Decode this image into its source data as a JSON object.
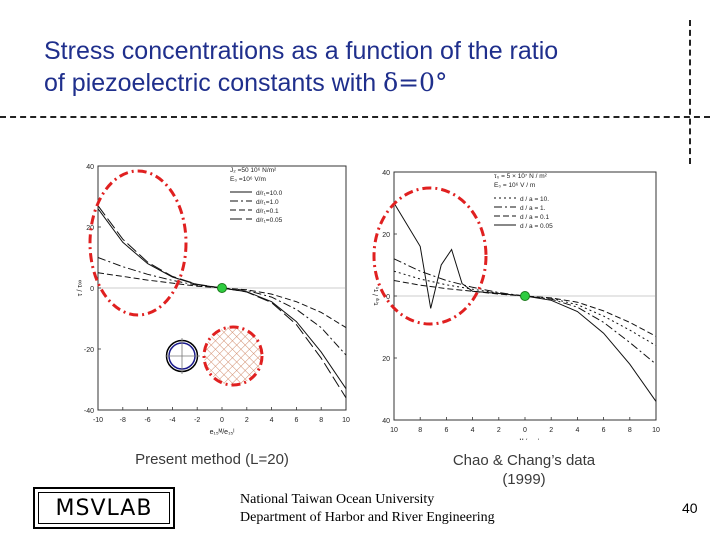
{
  "slide": {
    "title_line1": "Stress concentrations as a function of the ratio",
    "title_line2_prefix": "of piezoelectric constants with ",
    "title_symbol": "δ=0°",
    "caption_left": "Present method (L=20)",
    "caption_right_line1": "Chao & Chang’s data",
    "caption_right_line2": "(1999)",
    "logo_text": "MSVLAB",
    "institution_line1": "National Taiwan Ocean University",
    "institution_line2": "Department of Harbor and River Engineering",
    "page_number": "40",
    "accent_color": "#e02020",
    "title_color": "#1f2f8c",
    "marker_color": "#2ecc40"
  },
  "chart_data": [
    {
      "type": "line",
      "xlim": [
        -10,
        10
      ],
      "ylim": [
        -40,
        40
      ],
      "x_ticks": [
        "-10",
        "-8",
        "-6",
        "-4",
        "-2",
        "0",
        "2",
        "4",
        "6",
        "8",
        "10"
      ],
      "y_ticks": [
        "40",
        "20",
        "0",
        "-20",
        "-40"
      ],
      "xlabel": "e₁₅ᴹ/e₁₅ᴵ",
      "ylabel": "τ / τ∞",
      "legend_header": [
        "J₂ =50 10⁶ N/m²",
        "E₀ =10⁶ V/m"
      ],
      "legend_placement": "top-right",
      "series": [
        {
          "name": "d/r₁=10.0",
          "style": "solid",
          "x": [
            -10,
            -8,
            -6,
            -4,
            -2,
            0,
            2,
            4,
            6,
            8,
            10
          ],
          "y": [
            26,
            15,
            8,
            3.6,
            1.1,
            0,
            -1.2,
            -4.5,
            -11,
            -21,
            -33
          ]
        },
        {
          "name": "d/r₁=1.0",
          "style": "dashdot",
          "x": [
            -10,
            -8,
            -6,
            -4,
            -2,
            0,
            2,
            4,
            6,
            8,
            10
          ],
          "y": [
            10,
            7,
            4.5,
            2.5,
            0.9,
            0,
            -0.8,
            -3,
            -7,
            -13,
            -22
          ]
        },
        {
          "name": "d/r₁=0.1",
          "style": "dashed",
          "x": [
            -10,
            -8,
            -6,
            -4,
            -2,
            0,
            2,
            4,
            6,
            8,
            10
          ],
          "y": [
            5,
            3.8,
            2.6,
            1.6,
            0.6,
            0,
            -0.6,
            -2,
            -4.5,
            -8,
            -13
          ]
        },
        {
          "name": "d/r₁=0.05",
          "style": "longdash",
          "x": [
            -10,
            -8,
            -6,
            -4,
            -2,
            0,
            2,
            4,
            6,
            8,
            10
          ],
          "y": [
            27,
            16,
            8.5,
            3.8,
            1.2,
            0,
            -1.3,
            -4.8,
            -12,
            -23,
            -36
          ]
        }
      ]
    },
    {
      "type": "line",
      "xlim": [
        -10,
        10
      ],
      "ylim": [
        -40,
        40
      ],
      "x_ticks": [
        "10",
        "8",
        "6",
        "4",
        "2",
        "0",
        "2",
        "4",
        "6",
        "8",
        "10"
      ],
      "y_ticks": [
        "40",
        "20",
        "0",
        "20",
        "40"
      ],
      "xlabel": "e₁₅ᴹ / e₁₅ᴵ",
      "ylabel": "τᵣᵩ / τ₀",
      "legend_header": [
        "τ₀ = 5 × 10⁷ N / m²",
        "E₀ = 10⁶ V / m"
      ],
      "legend_placement": "top-right",
      "series": [
        {
          "name": "d / a = 10.",
          "style": "dotted",
          "x": [
            -10,
            -8,
            -6,
            -4,
            -2,
            0,
            2,
            4,
            6,
            8,
            10
          ],
          "y": [
            8,
            5.5,
            3.6,
            2.2,
            0.9,
            0,
            -0.8,
            -2.8,
            -6.5,
            -11,
            -16
          ]
        },
        {
          "name": "d / a = 1.",
          "style": "dashdot",
          "x": [
            -10,
            -8,
            -6,
            -4,
            -2,
            0,
            2,
            4,
            6,
            8,
            10
          ],
          "y": [
            12,
            8,
            5,
            2.8,
            1.1,
            0,
            -1,
            -3.6,
            -8.5,
            -15,
            -22
          ]
        },
        {
          "name": "d / a = 0.1",
          "style": "dashed",
          "x": [
            -10,
            -8,
            -6,
            -4,
            -2,
            0,
            2,
            4,
            6,
            8,
            10
          ],
          "y": [
            5,
            3.5,
            2.4,
            1.5,
            0.6,
            0,
            -0.6,
            -2,
            -4.8,
            -8.5,
            -13
          ]
        },
        {
          "name": "d / a = 0.05",
          "style": "solid",
          "x": [
            -10,
            -8,
            -7.2,
            -6.4,
            -5.6,
            -4.8,
            -4,
            -2,
            0,
            2,
            4,
            6,
            8,
            10
          ],
          "y": [
            30,
            16,
            -4,
            10,
            15,
            4,
            1.5,
            0.8,
            0,
            -1.4,
            -5,
            -12,
            -22,
            -34
          ]
        }
      ]
    }
  ]
}
